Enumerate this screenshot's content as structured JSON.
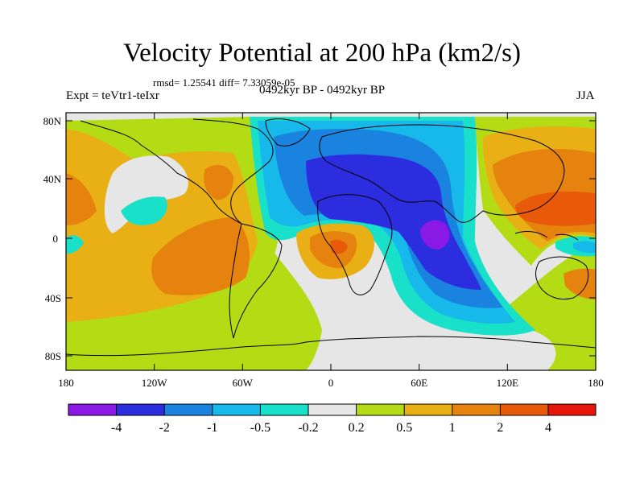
{
  "title": "Velocity Potential at 200 hPa (km2/s)",
  "stats": "rmsd= 1.25541 diff= 7.33059e-05",
  "left_label": "Expt = teVtr1-teIxr",
  "center_label": "0492kyr BP - 0492kyr BP",
  "right_label": "JJA",
  "map": {
    "lon_ticks": [
      "180",
      "120W",
      "60W",
      "0",
      "60E",
      "120E",
      "180"
    ],
    "lat_ticks": [
      "80N",
      "40N",
      "0",
      "40S",
      "80S"
    ]
  },
  "colorbar": {
    "colors": [
      "#8a19e6",
      "#2d2de0",
      "#1a83e0",
      "#16b9ea",
      "#19e0c8",
      "#e6e6e6",
      "#b4dc14",
      "#e8b014",
      "#e6830e",
      "#e85a0a",
      "#e6140a"
    ],
    "labels": [
      "-4",
      "-2",
      "-1",
      "-0.5",
      "-0.2",
      "0.2",
      "0.5",
      "1",
      "2",
      "4"
    ]
  }
}
